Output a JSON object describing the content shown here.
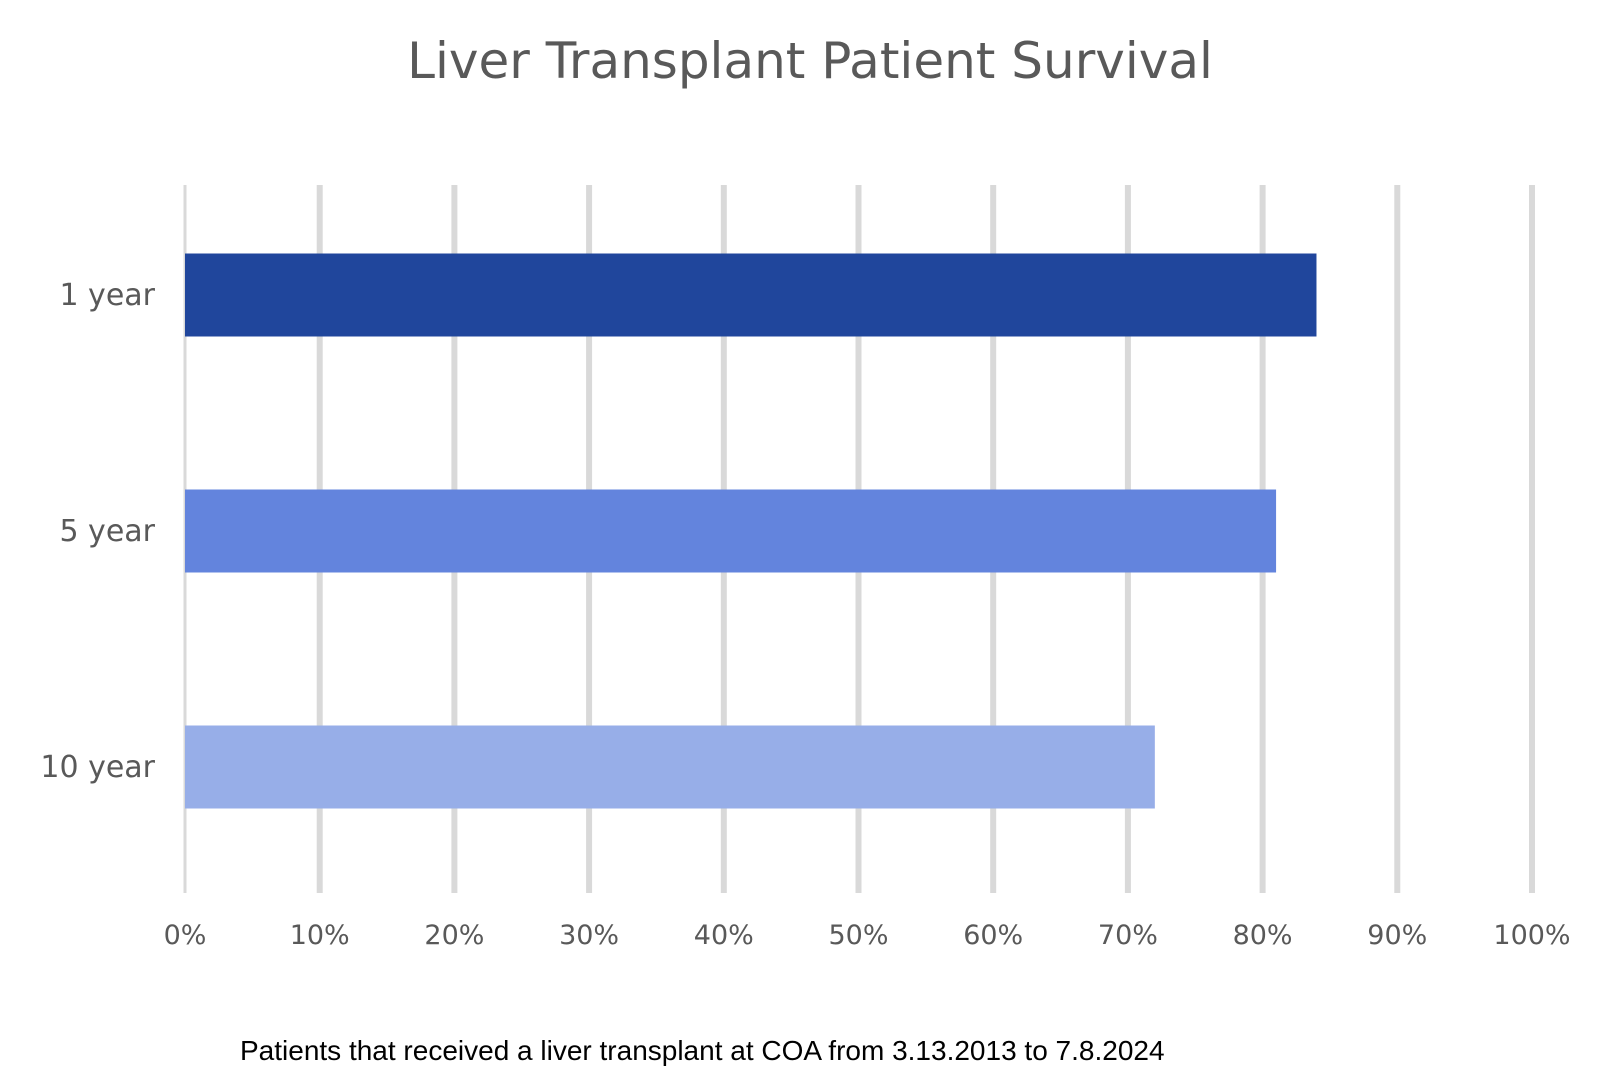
{
  "chart_data": {
    "type": "bar",
    "orientation": "horizontal",
    "title": "Liver Transplant Patient Survival",
    "categories": [
      "1 year",
      "5 year",
      "10 year"
    ],
    "values": [
      84,
      81,
      72
    ],
    "value_unit": "%",
    "xlim": [
      0,
      100
    ],
    "x_ticks": [
      0,
      10,
      20,
      30,
      40,
      50,
      60,
      70,
      80,
      90,
      100
    ],
    "x_tick_labels": [
      "0%",
      "10%",
      "20%",
      "30%",
      "40%",
      "50%",
      "60%",
      "70%",
      "80%",
      "90%",
      "100%"
    ],
    "bar_colors": [
      "#20469c",
      "#6384dd",
      "#97aee8"
    ],
    "grid": true,
    "xlabel": "",
    "ylabel": ""
  },
  "footnote": "Patients that received a liver transplant at COA from 3.13.2013 to 7.8.2024"
}
